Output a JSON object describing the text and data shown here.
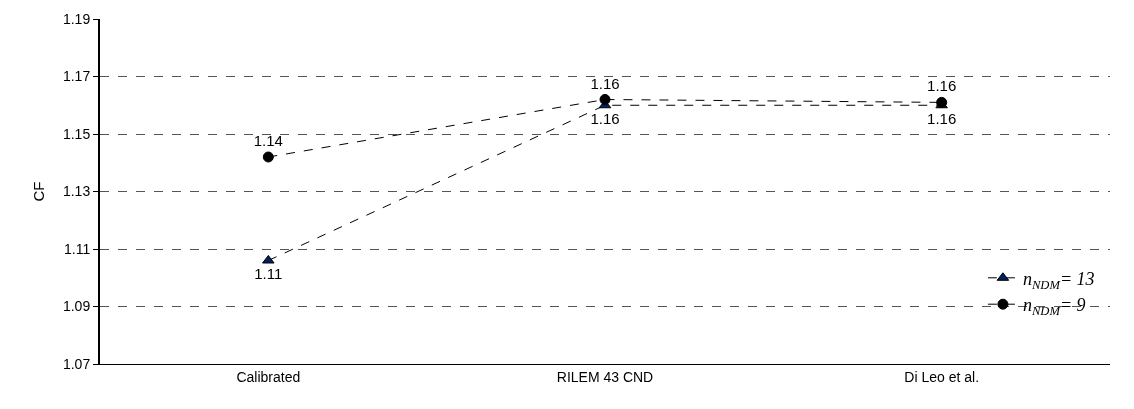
{
  "chart_data": {
    "type": "line",
    "ylabel": "CF",
    "categories": [
      "Calibrated",
      "RILEM 43 CND",
      "Di Leo et al."
    ],
    "series": [
      {
        "name": "n$_{NDM}$= 13",
        "color": "#002060",
        "marker": "triangle",
        "values": [
          1.106,
          1.16,
          1.16
        ],
        "value_labels": [
          "1.11",
          "1.16",
          "1.16"
        ]
      },
      {
        "name": "n$_{NDM}$= 9",
        "color": "#000000",
        "marker": "circle",
        "values": [
          1.142,
          1.162,
          1.161
        ],
        "value_labels": [
          "1.14",
          "1.16",
          "1.16"
        ]
      }
    ],
    "line_style": "dashed",
    "ylim": [
      1.07,
      1.19
    ],
    "yticks": [
      1.07,
      1.09,
      1.11,
      1.13,
      1.15,
      1.17,
      1.19
    ],
    "grid": "y",
    "legend": "bottom right"
  }
}
